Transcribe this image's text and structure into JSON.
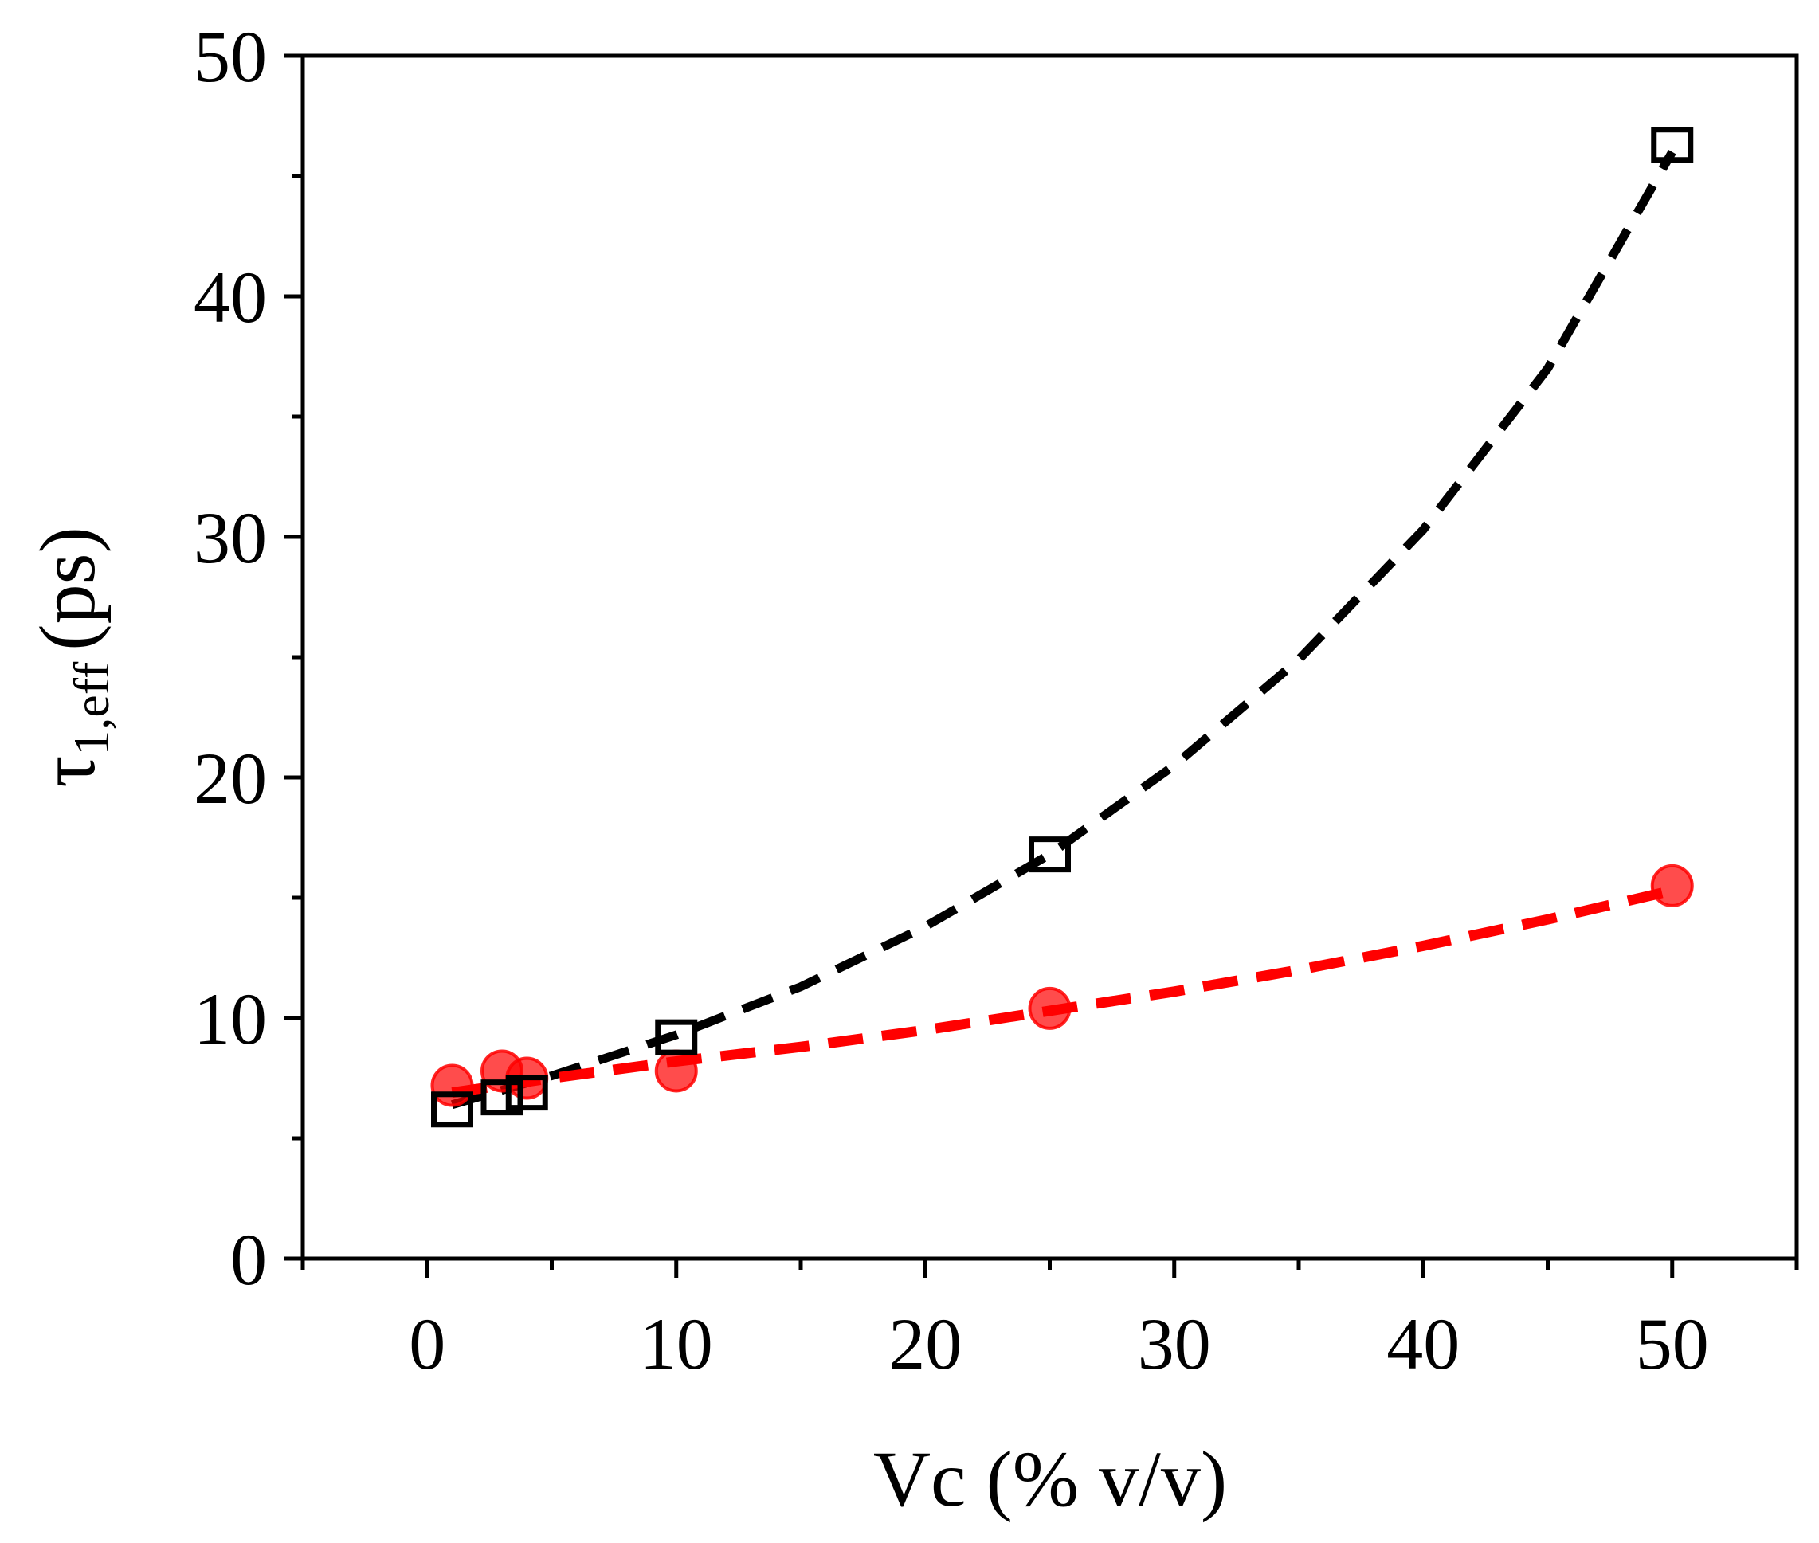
{
  "chart_data": {
    "type": "scatter",
    "title": "",
    "xlabel": "Vc (% v/v)",
    "ylabel": "τ1,eff (ps)",
    "ylabel_parts": {
      "symbol": "τ",
      "subscript": "1,eff",
      "unit": "(ps)"
    },
    "xlim": [
      -5,
      55
    ],
    "ylim": [
      0,
      50
    ],
    "xticks": [
      0,
      10,
      20,
      30,
      40,
      50
    ],
    "yticks": [
      0,
      10,
      20,
      30,
      40,
      50
    ],
    "grid": false,
    "series": [
      {
        "name": "open squares",
        "marker": "square-open",
        "color": "#000000",
        "x": [
          1,
          3,
          4,
          10,
          25,
          50
        ],
        "y": [
          6.2,
          6.7,
          6.9,
          9.2,
          16.8,
          46.3
        ],
        "fit": {
          "style": "dashed",
          "x": [
            1,
            3,
            5,
            10,
            15,
            20,
            25,
            30,
            35,
            40,
            45,
            50
          ],
          "y": [
            6.4,
            7.0,
            7.6,
            9.3,
            11.3,
            13.8,
            16.8,
            20.5,
            24.9,
            30.3,
            37.0,
            46.0
          ]
        }
      },
      {
        "name": "filled circles",
        "marker": "circle-filled",
        "color": "#ff0000",
        "x": [
          1,
          3,
          4,
          10,
          25,
          50
        ],
        "y": [
          7.2,
          7.8,
          7.5,
          7.8,
          10.4,
          15.5
        ],
        "fit": {
          "style": "dashed",
          "x": [
            1,
            5,
            10,
            15,
            20,
            25,
            30,
            35,
            40,
            45,
            50
          ],
          "y": [
            6.9,
            7.5,
            8.2,
            8.8,
            9.5,
            10.3,
            11.1,
            12.0,
            13.0,
            14.1,
            15.3
          ]
        }
      }
    ]
  }
}
